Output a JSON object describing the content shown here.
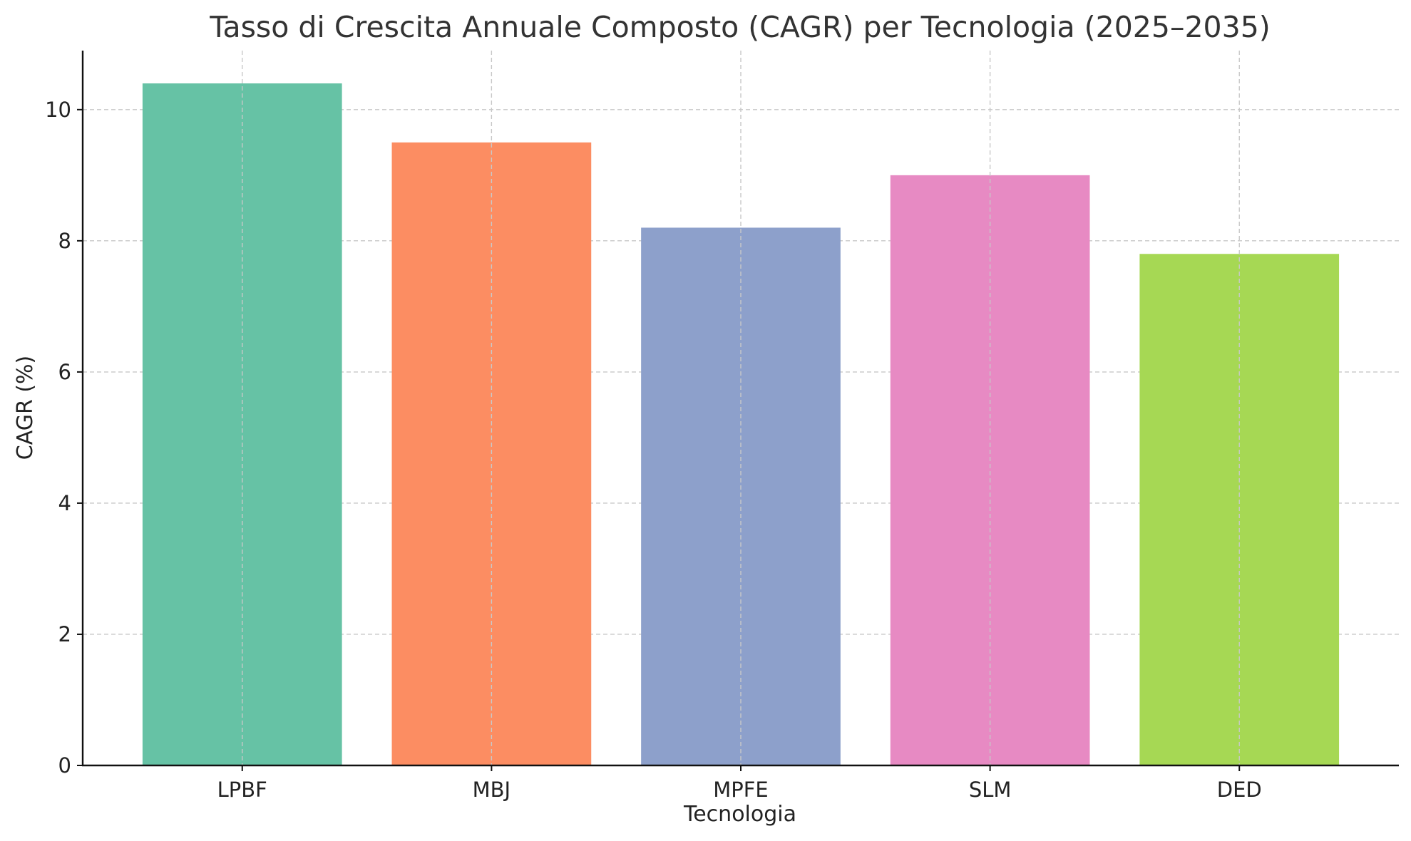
{
  "chart_data": {
    "type": "bar",
    "title": "Tasso di Crescita Annuale Composto (CAGR) per Tecnologia (2025–2035)",
    "xlabel": "Tecnologia",
    "ylabel": "CAGR (%)",
    "categories": [
      "LPBF",
      "MBJ",
      "MPFE",
      "SLM",
      "DED"
    ],
    "values": [
      10.4,
      9.5,
      8.2,
      9.0,
      7.8
    ],
    "colors": [
      "#66c2a5",
      "#fc8d62",
      "#8da0cb",
      "#e78ac3",
      "#a6d854"
    ],
    "ylim": [
      0,
      10.9
    ],
    "yticks": [
      0,
      2,
      4,
      6,
      8,
      10
    ],
    "grid": true,
    "legend": "none"
  }
}
